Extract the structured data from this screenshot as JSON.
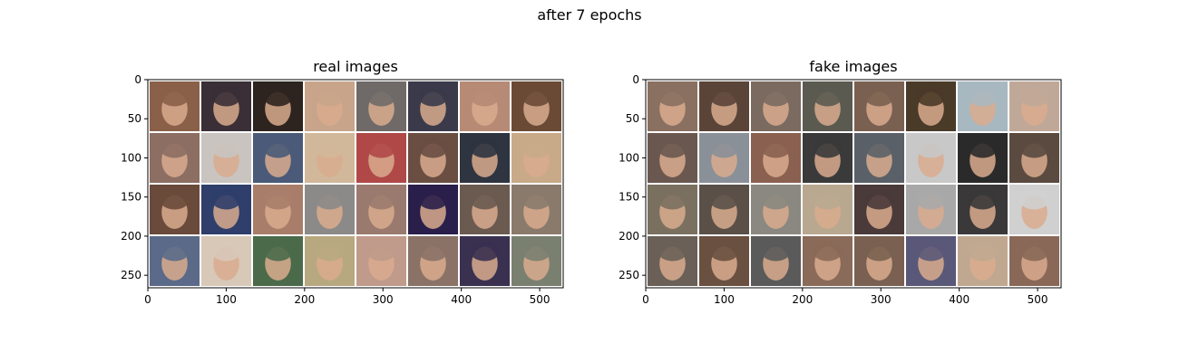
{
  "figure": {
    "title": "after 7 epochs"
  },
  "palette": {
    "tile_bg": "#ffffff",
    "grid_line": "#ffffff",
    "axis": "#000000",
    "text": "#000000"
  },
  "chart_data": [
    {
      "type": "image",
      "title": "real images",
      "xlim": [
        0,
        530
      ],
      "ylim": [
        266,
        0
      ],
      "xticks": [
        0,
        100,
        200,
        300,
        400,
        500
      ],
      "yticks": [
        0,
        50,
        100,
        150,
        200,
        250
      ],
      "grid": {
        "rows": 4,
        "cols": 8
      },
      "tiles": [
        [
          "#8a6048",
          "#3a2f36",
          "#2d231f",
          "#c8a48a",
          "#6f6a68",
          "#3a3a4a",
          "#b68a74",
          "#6a4a35"
        ],
        [
          "#8c6e63",
          "#c9c4c0",
          "#4a5a78",
          "#d2b89a",
          "#b04848",
          "#6a4e42",
          "#2e3440",
          "#c8aa88"
        ],
        [
          "#6a4a3a",
          "#2f3e6a",
          "#a87e6a",
          "#8c8a88",
          "#9a7a6e",
          "#2a1e4a",
          "#6a5a50",
          "#8a7a6c"
        ],
        [
          "#5a6a88",
          "#d8c8b8",
          "#4a6a4a",
          "#b8a880",
          "#c09a8a",
          "#8a7266",
          "#3a3050",
          "#7a8070"
        ]
      ]
    },
    {
      "type": "image",
      "title": "fake images",
      "xlim": [
        0,
        530
      ],
      "ylim": [
        266,
        0
      ],
      "xticks": [
        0,
        100,
        200,
        300,
        400,
        500
      ],
      "yticks": [
        0,
        50,
        100,
        150,
        200,
        250
      ],
      "grid": {
        "rows": 4,
        "cols": 8
      },
      "tiles": [
        [
          "#8a7060",
          "#5a4438",
          "#7a6a60",
          "#5a5a50",
          "#7a6050",
          "#4a3a28",
          "#a8b8c0",
          "#c0a898"
        ],
        [
          "#6a5850",
          "#8a9098",
          "#8a6050",
          "#3a3a3a",
          "#5a6068",
          "#c8c8c8",
          "#2a2a2a",
          "#5a4a40"
        ],
        [
          "#7a7060",
          "#5a5048",
          "#8a8880",
          "#b8a890",
          "#4a3a3a",
          "#a8a8a8",
          "#3a3838",
          "#d0d0d0"
        ],
        [
          "#6a6058",
          "#6a5040",
          "#5a5a5a",
          "#8a6a58",
          "#7a6050",
          "#5a5878",
          "#c0a890",
          "#8a6858"
        ]
      ]
    }
  ]
}
